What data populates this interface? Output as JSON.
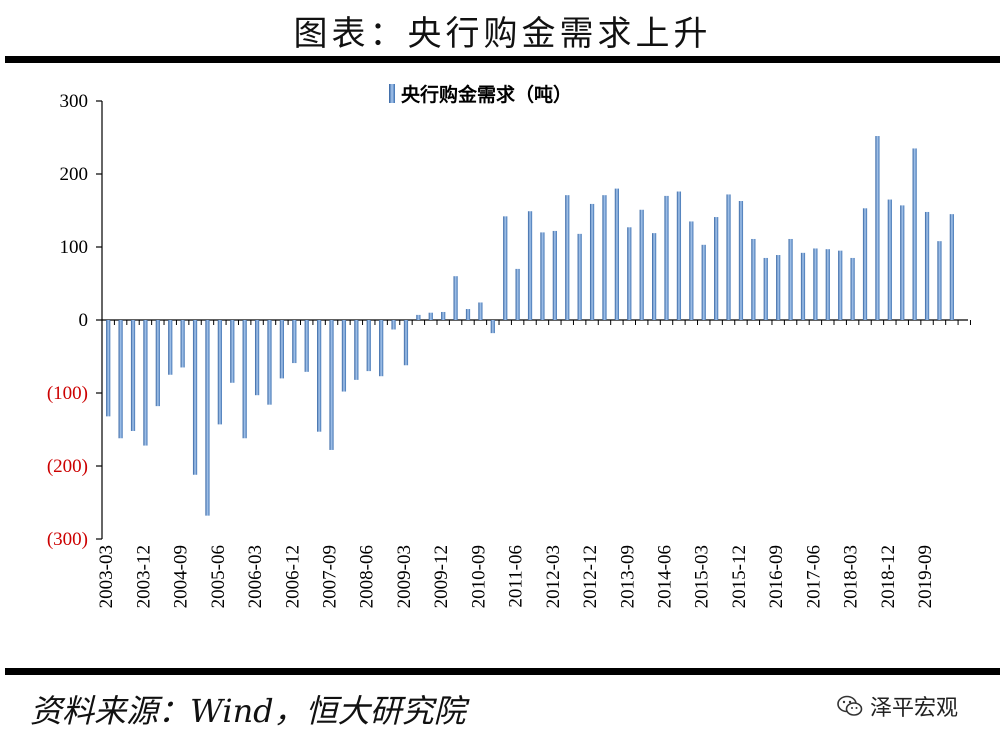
{
  "header": {
    "title": "图表：央行购金需求上升"
  },
  "footer": {
    "source": "资料来源：Wind，恒大研究院",
    "watermark": "泽平宏观"
  },
  "chart_data": {
    "type": "bar",
    "title": "",
    "legend": {
      "label": "央行购金需求（吨）",
      "position": "top-center"
    },
    "ylim": [
      -300,
      300
    ],
    "yticks": [
      300,
      200,
      100,
      0,
      -100,
      -200,
      -300
    ],
    "ytick_labels": [
      "300",
      "200",
      "100",
      "0",
      "(100)",
      "(200)",
      "(300)"
    ],
    "negative_label_color": "#cc0000",
    "bar_color": "#4f86c6",
    "grid": false,
    "xtick_labels": [
      "2003-03",
      "2003-12",
      "2004-09",
      "2005-06",
      "2006-03",
      "2006-12",
      "2007-09",
      "2008-06",
      "2009-03",
      "2009-12",
      "2010-09",
      "2011-06",
      "2012-03",
      "2012-12",
      "2013-09",
      "2014-06",
      "2015-03",
      "2015-12",
      "2016-09",
      "2017-06",
      "2018-03",
      "2018-12",
      "2019-09"
    ],
    "categories": [
      "2003-03",
      "2003-06",
      "2003-09",
      "2003-12",
      "2004-03",
      "2004-06",
      "2004-09",
      "2004-12",
      "2005-03",
      "2005-06",
      "2005-09",
      "2005-12",
      "2006-03",
      "2006-06",
      "2006-09",
      "2006-12",
      "2007-03",
      "2007-06",
      "2007-09",
      "2007-12",
      "2008-03",
      "2008-06",
      "2008-09",
      "2008-12",
      "2009-03",
      "2009-06",
      "2009-09",
      "2009-12",
      "2010-03",
      "2010-06",
      "2010-09",
      "2010-12",
      "2011-03",
      "2011-06",
      "2011-09",
      "2011-12",
      "2012-03",
      "2012-06",
      "2012-09",
      "2012-12",
      "2013-03",
      "2013-06",
      "2013-09",
      "2013-12",
      "2014-03",
      "2014-06",
      "2014-09",
      "2014-12",
      "2015-03",
      "2015-06",
      "2015-09",
      "2015-12",
      "2016-03",
      "2016-06",
      "2016-09",
      "2016-12",
      "2017-03",
      "2017-06",
      "2017-09",
      "2017-12",
      "2018-03",
      "2018-06",
      "2018-09",
      "2018-12",
      "2019-03",
      "2019-06",
      "2019-09",
      "2019-12",
      "2020-03",
      "2020-06"
    ],
    "values": [
      -132,
      -162,
      -152,
      -172,
      -118,
      -75,
      -65,
      -212,
      -268,
      -143,
      -86,
      -162,
      -103,
      -116,
      -80,
      -59,
      -71,
      -153,
      -178,
      -98,
      -82,
      -70,
      -77,
      -13,
      -62,
      7,
      10,
      11,
      60,
      15,
      24,
      -18,
      142,
      70,
      149,
      120,
      122,
      171,
      118,
      159,
      171,
      180,
      127,
      151,
      119,
      170,
      176,
      135,
      103,
      141,
      172,
      163,
      111,
      85,
      89,
      111,
      92,
      98,
      97,
      95,
      85,
      153,
      252,
      165,
      157,
      235,
      148,
      108,
      145,
      0
    ]
  }
}
